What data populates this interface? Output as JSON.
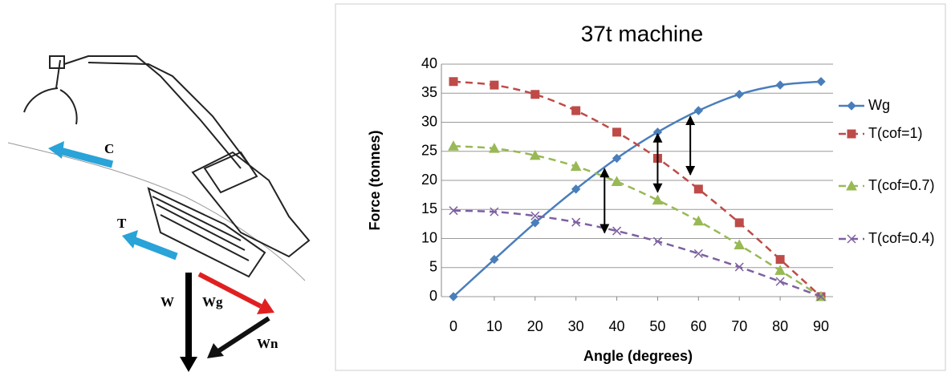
{
  "diagram": {
    "labels": {
      "c": "C",
      "t": "T",
      "w": "W",
      "wg": "Wg",
      "wn": "Wn"
    }
  },
  "chart_data": {
    "type": "line",
    "title": "37t machine",
    "x_label": "Angle (degrees)",
    "y_label": "Force (tonnes)",
    "x": [
      0,
      10,
      20,
      30,
      40,
      50,
      60,
      70,
      80,
      90
    ],
    "series": [
      {
        "name": "Wg",
        "color": "#4a7ebb",
        "dash": false,
        "marker": "diamond",
        "values": [
          0,
          6.4,
          12.7,
          18.5,
          23.8,
          28.3,
          32.0,
          34.8,
          36.4,
          37
        ]
      },
      {
        "name": "T(cof=1)",
        "color": "#be4b48",
        "dash": true,
        "marker": "square",
        "values": [
          37,
          36.4,
          34.8,
          32.0,
          28.3,
          23.8,
          18.5,
          12.7,
          6.4,
          0
        ]
      },
      {
        "name": "T(cof=0.7)",
        "color": "#98b954",
        "dash": true,
        "marker": "triangle",
        "values": [
          25.9,
          25.5,
          24.3,
          22.4,
          19.8,
          16.6,
          13.0,
          8.9,
          4.5,
          0
        ]
      },
      {
        "name": "T(cof=0.4)",
        "color": "#7d60a0",
        "dash": true,
        "marker": "cross",
        "values": [
          14.8,
          14.6,
          13.9,
          12.8,
          11.3,
          9.5,
          7.4,
          5.1,
          2.6,
          0
        ]
      }
    ],
    "arrows": [
      {
        "x": 37,
        "from": 11,
        "to": 22
      },
      {
        "x": 50,
        "from": 18,
        "to": 28
      },
      {
        "x": 58,
        "from": 21,
        "to": 31
      }
    ],
    "xlim": [
      0,
      90
    ],
    "xticks": [
      0,
      10,
      20,
      30,
      40,
      50,
      60,
      70,
      80,
      90
    ],
    "ylim": [
      0,
      40
    ],
    "yticks": [
      0,
      5,
      10,
      15,
      20,
      25,
      30,
      35,
      40
    ],
    "grid": true,
    "legend": "right"
  }
}
